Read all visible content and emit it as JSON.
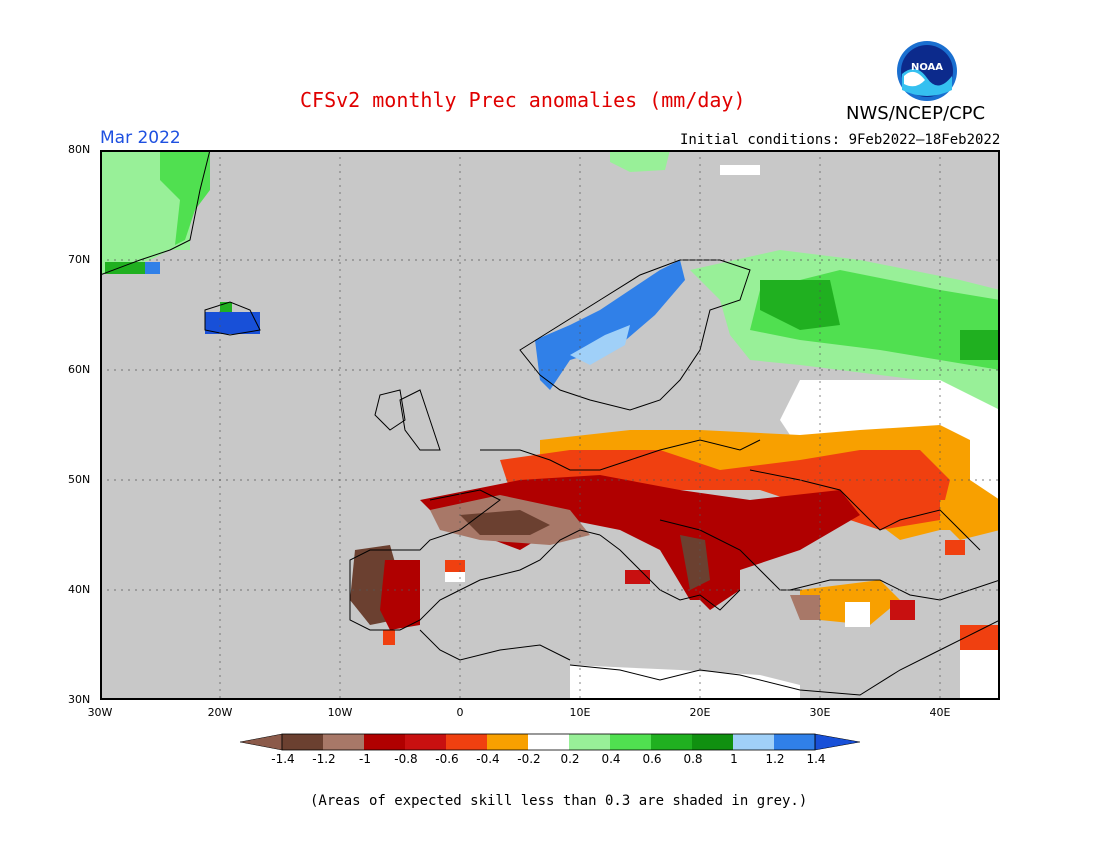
{
  "header": {
    "title": "CFSv2 monthly Prec anomalies (mm/day)",
    "agency": "NWS/NCEP/CPC",
    "logo_text": "NOAA",
    "month_label": "Mar 2022",
    "initial_conditions": "Initial conditions: 9Feb2022–18Feb2022"
  },
  "map": {
    "lat_labels": [
      "80N",
      "70N",
      "60N",
      "50N",
      "40N",
      "30N"
    ],
    "lon_labels": [
      "30W",
      "20W",
      "10W",
      "0",
      "10E",
      "20E",
      "30E",
      "40E"
    ],
    "background_color": "#c8c8c8"
  },
  "colorbar": {
    "ticks": [
      "-1.4",
      "-1.2",
      "-1",
      "-0.8",
      "-0.6",
      "-0.4",
      "-0.2",
      "0.2",
      "0.4",
      "0.6",
      "0.8",
      "1",
      "1.2",
      "1.4"
    ],
    "colors": [
      "#8b5a4a",
      "#6b4030",
      "#a87868",
      "#b00000",
      "#c81010",
      "#f04010",
      "#f8a000",
      "#ffffff",
      "#98f098",
      "#50e050",
      "#20b020",
      "#109010",
      "#a0d0f8",
      "#3080e8",
      "#1850d8"
    ]
  },
  "footnote": "(Areas of expected skill less than 0.3 are shaded in grey.)"
}
